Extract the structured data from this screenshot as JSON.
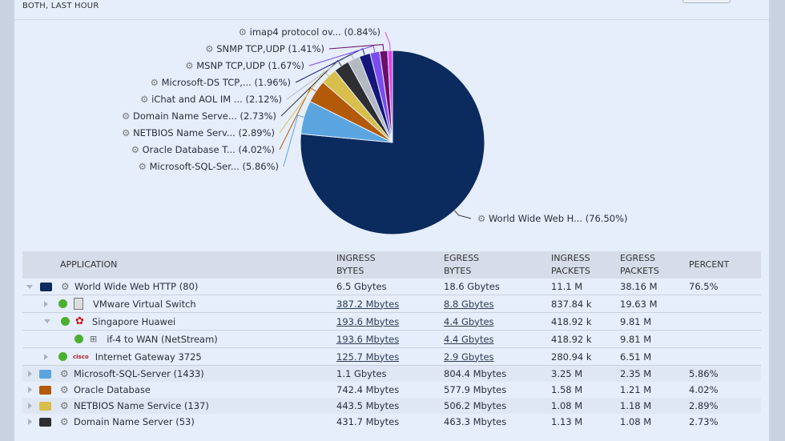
{
  "header": {
    "title": "BOTH, LAST HOUR"
  },
  "chart_data": {
    "type": "pie",
    "slices": [
      {
        "label": "World Wide Web H... (76.50%)",
        "value": 76.5,
        "color": "#0b2a5e"
      },
      {
        "label": "Microsoft-SQL-Ser... (5.86%)",
        "value": 5.86,
        "color": "#5aa5e0"
      },
      {
        "label": "Oracle Database T... (4.02%)",
        "value": 4.02,
        "color": "#b35a08"
      },
      {
        "label": "NETBIOS Name Serv... (2.89%)",
        "value": 2.89,
        "color": "#d8be4a"
      },
      {
        "label": "Domain Name Serve... (2.73%)",
        "value": 2.73,
        "color": "#2e2f33"
      },
      {
        "label": "iChat and AOL IM ... (2.12%)",
        "value": 2.12,
        "color": "#b4b8c0"
      },
      {
        "label": "Microsoft-DS TCP,... (1.96%)",
        "value": 1.96,
        "color": "#14167a"
      },
      {
        "label": "MSNP TCP,UDP (1.67%)",
        "value": 1.67,
        "color": "#7a4cf0"
      },
      {
        "label": "SNMP TCP,UDP (1.41%)",
        "value": 1.41,
        "color": "#6a0f6a"
      },
      {
        "label": "imap4 protocol ov... (0.84%)",
        "value": 0.84,
        "color": "#e040e8"
      }
    ]
  },
  "table": {
    "headers": {
      "application": "APPLICATION",
      "ingress_bytes": [
        "INGRESS",
        "BYTES"
      ],
      "egress_bytes": [
        "EGRESS",
        "BYTES"
      ],
      "ingress_packets": [
        "INGRESS",
        "PACKETS"
      ],
      "egress_packets": [
        "EGRESS",
        "PACKETS"
      ],
      "percent": "PERCENT"
    },
    "rows": [
      {
        "name": "World Wide Web HTTP (80)",
        "ib": "6.5 Gbytes",
        "eb": "18.6 Gbytes",
        "ip": "11.1 M",
        "ep": "38.16 M",
        "pct": "76.5%"
      },
      {
        "name": "VMware Virtual Switch",
        "ib": "387.2 Mbytes",
        "eb": "8.8 Gbytes",
        "ip": "837.84 k",
        "ep": "19.63 M",
        "pct": ""
      },
      {
        "name": "Singapore Huawei",
        "ib": "193.6 Mbytes",
        "eb": "4.4 Gbytes",
        "ip": "418.92 k",
        "ep": "9.81 M",
        "pct": ""
      },
      {
        "name": "if-4 to WAN (NetStream)",
        "ib": "193.6 Mbytes",
        "eb": "4.4 Gbytes",
        "ip": "418.92 k",
        "ep": "9.81 M",
        "pct": ""
      },
      {
        "name": "Internet Gateway 3725",
        "ib": "125.7 Mbytes",
        "eb": "2.9 Gbytes",
        "ip": "280.94 k",
        "ep": "6.51 M",
        "pct": ""
      },
      {
        "name": "Microsoft-SQL-Server (1433)",
        "ib": "1.1 Gbytes",
        "eb": "804.4 Mbytes",
        "ip": "3.25 M",
        "ep": "2.35 M",
        "pct": "5.86%"
      },
      {
        "name": "Oracle Database",
        "ib": "742.4 Mbytes",
        "eb": "577.9 Mbytes",
        "ip": "1.58 M",
        "ep": "1.21 M",
        "pct": "4.02%"
      },
      {
        "name": "NETBIOS Name Service (137)",
        "ib": "443.5 Mbytes",
        "eb": "506.2 Mbytes",
        "ip": "1.08 M",
        "ep": "1.18 M",
        "pct": "2.89%"
      },
      {
        "name": "Domain Name Server (53)",
        "ib": "431.7 Mbytes",
        "eb": "463.3 Mbytes",
        "ip": "1.13 M",
        "ep": "1.08 M",
        "pct": "2.73%"
      }
    ]
  }
}
